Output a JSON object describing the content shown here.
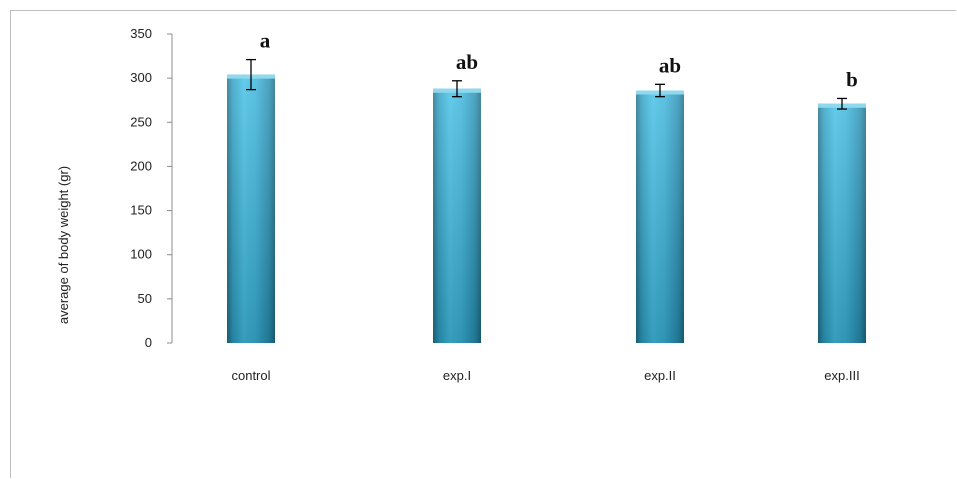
{
  "chart_data": {
    "type": "bar",
    "categories": [
      "control",
      "exp.I",
      "exp.II",
      "exp.III"
    ],
    "values": [
      304,
      288,
      286,
      271
    ],
    "error_bars": [
      17,
      9,
      7,
      6
    ],
    "significance_labels": [
      "a",
      "ab",
      "ab",
      "b"
    ],
    "title": "",
    "xlabel": "",
    "ylabel": "average of body weight (gr)",
    "ylim": [
      0,
      350
    ],
    "yticks": [
      0,
      50,
      100,
      150,
      200,
      250,
      300,
      350
    ],
    "grid": false,
    "legend": "none",
    "bar_color": "#3bb4d8"
  }
}
